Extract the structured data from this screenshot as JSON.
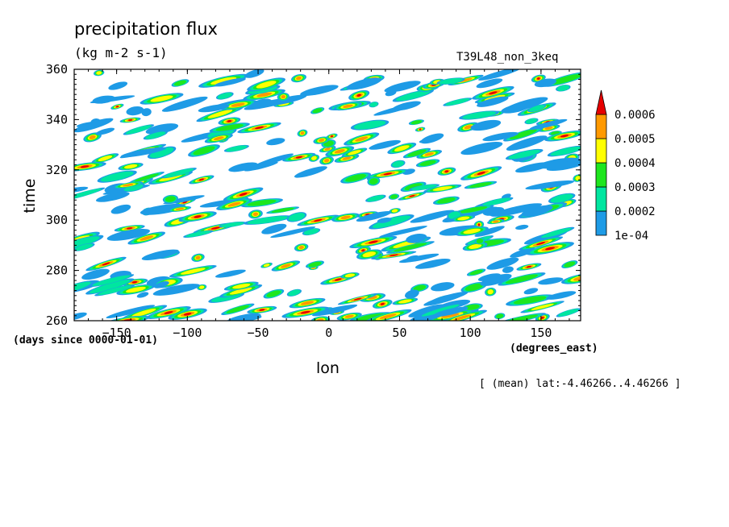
{
  "title": "precipitation flux",
  "units": "(kg m-2 s-1)",
  "run_label": "T39L48_non_3keq",
  "note": "[ (mean) lat:-4.46266..4.46266 ]",
  "colors": {
    "level1": "#1e9be6",
    "level2": "#00e6a0",
    "level3": "#1ee61e",
    "level4": "#ffff00",
    "level5": "#ff9900",
    "level6": "#e60000"
  },
  "chart_data": {
    "type": "heatmap",
    "title": "precipitation flux",
    "subtitle": "(kg m-2 s-1)",
    "xlabel": "lon",
    "x_units": "(degrees_east)",
    "ylabel": "time",
    "y_units": "(days since 0000-01-01)",
    "xlim": [
      -180,
      178
    ],
    "ylim": [
      260,
      360
    ],
    "x_ticks": [
      -150,
      -100,
      -50,
      0,
      50,
      100,
      150
    ],
    "y_ticks": [
      260,
      280,
      300,
      320,
      340,
      360
    ],
    "grid": false,
    "legend": "right",
    "colorbar_levels": [
      "1e-04",
      "0.0002",
      "0.0003",
      "0.0004",
      "0.0005",
      "0.0006"
    ],
    "colorbar_thresholds": [
      0.0001,
      0.0002,
      0.0003,
      0.0004,
      0.0005,
      0.0006
    ],
    "field": "eastward-propagating tropical rainfall streaks, maxima near lon 0 around day 295-310"
  }
}
